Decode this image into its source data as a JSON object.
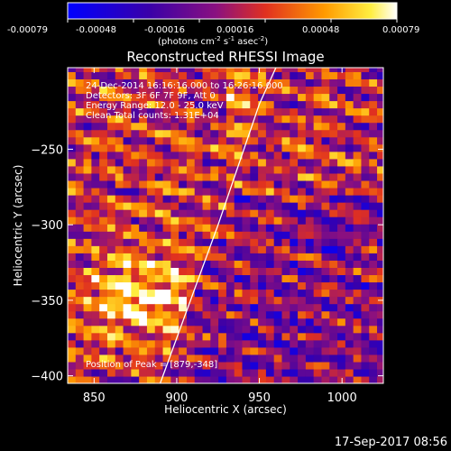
{
  "colorbar": {
    "ticks": [
      "-0.00079",
      "-0.00048",
      "-0.00016",
      "0.00016",
      "0.00048",
      "0.00079"
    ],
    "units_main": "(photons cm",
    "units_sup1": "-2",
    "units_mid": " s",
    "units_sup2": "-1",
    "units_mid2": " asec",
    "units_sup3": "-2",
    "units_end": ")"
  },
  "annotations": {
    "time_range": "24-Dec-2014 16:16:16.000 to 16:26:16.000",
    "detectors": "Detectors: 3F 6F 7F 9F, Att 0",
    "energy_range": "Energy Range: 12.0 - 25.0 keV",
    "clean_counts": "Clean     Total counts: 1.31E+04",
    "peak": "Position of Peak = [879,-348]"
  },
  "footer": {
    "date": "17-Sep-2017 08:56"
  },
  "colors": {
    "background": "#000000",
    "limb": "#ffffff",
    "text": "#ffffff"
  },
  "chart_data": {
    "type": "heatmap",
    "title": "Reconstructed RHESSI Image",
    "xlabel": "Heliocentric X (arcsec)",
    "ylabel": "Heliocentric Y (arcsec)",
    "xlim": [
      834,
      1025
    ],
    "ylim": [
      -405,
      -196
    ],
    "xticks": [
      850,
      900,
      950,
      1000
    ],
    "yticks": [
      -250,
      -300,
      -350,
      -400
    ],
    "colorbar_range": [
      -0.00079,
      0.00079
    ],
    "grid": false,
    "colormap": "blue-purple-red-orange-yellow-white",
    "limb_line": [
      [
        890,
        -405
      ],
      [
        925,
        -300
      ],
      [
        950,
        -220
      ],
      [
        960,
        -196
      ]
    ],
    "peak_position": [
      879,
      -348
    ],
    "pixel_size_arcsec": 4.8
  }
}
